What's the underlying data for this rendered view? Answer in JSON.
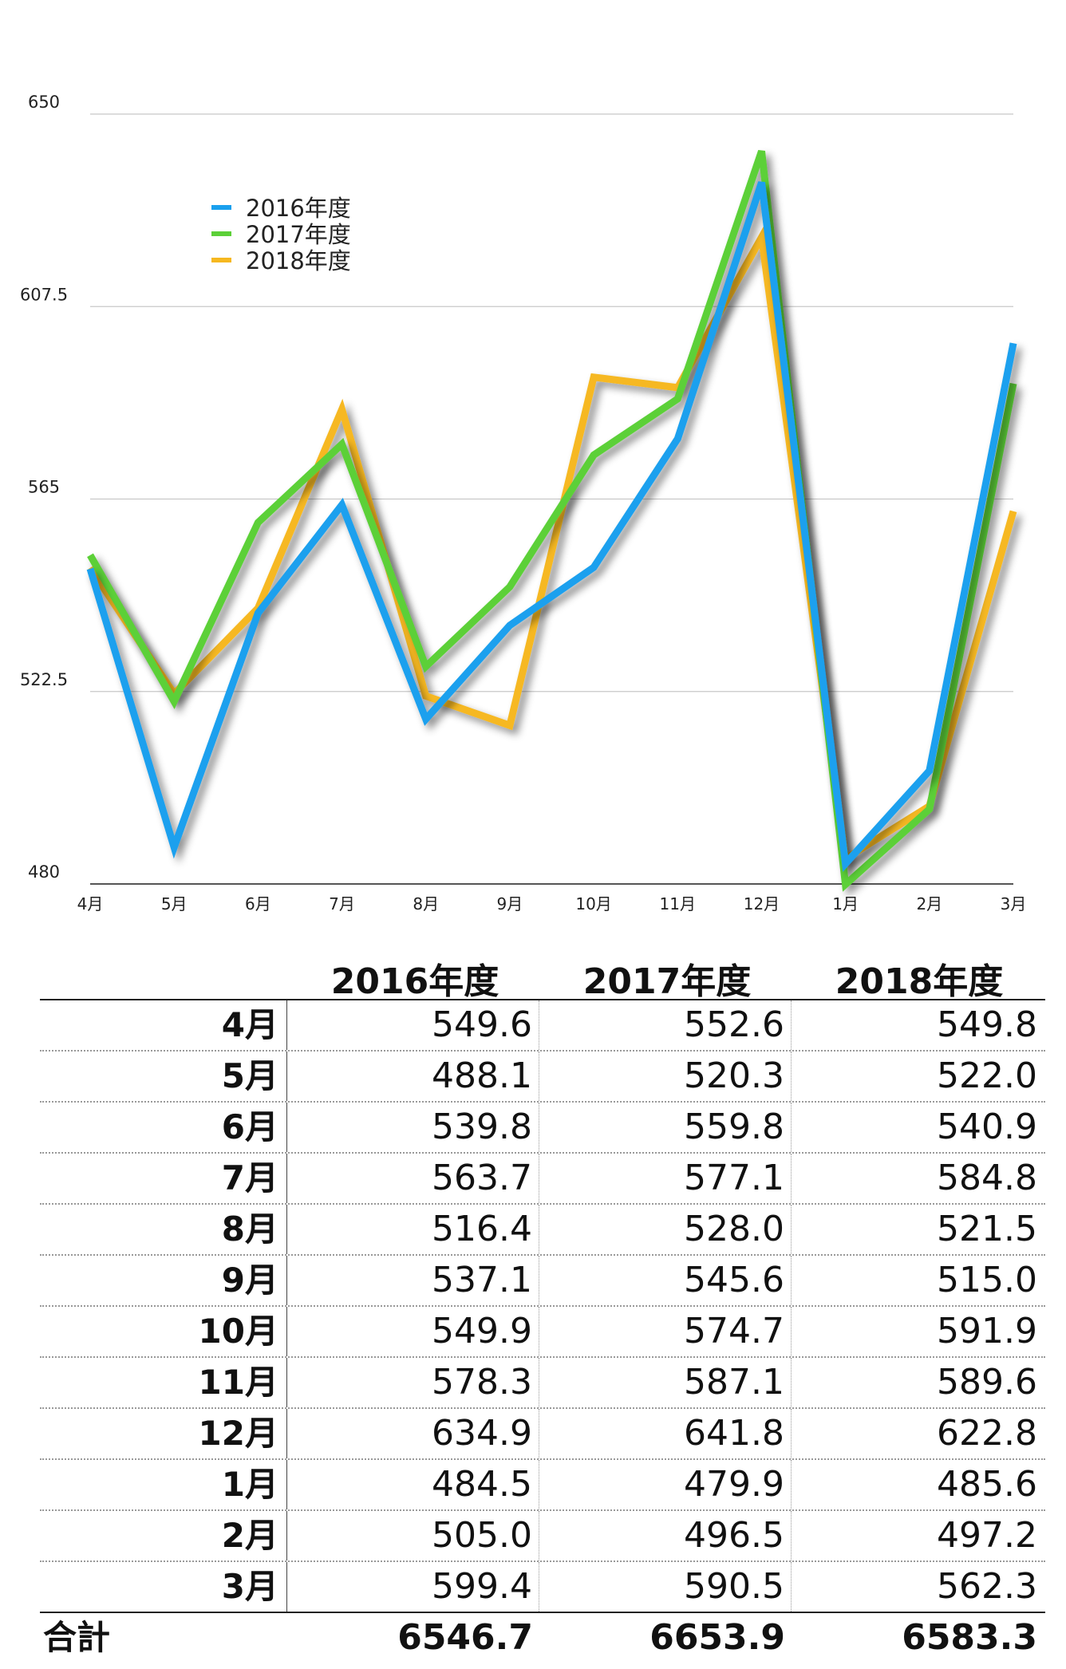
{
  "chart_data": {
    "type": "line",
    "categories": [
      "4月",
      "5月",
      "6月",
      "7月",
      "8月",
      "9月",
      "10月",
      "11月",
      "12月",
      "1月",
      "2月",
      "3月"
    ],
    "ylim": [
      480,
      650
    ],
    "yticks": [
      "650",
      "607.5",
      "565",
      "522.5",
      "480"
    ],
    "grid": true,
    "legend_position": "top-left",
    "series": [
      {
        "name": "2016年度",
        "color": "#1aa0ee",
        "values": [
          549.6,
          488.1,
          539.8,
          563.7,
          516.4,
          537.1,
          549.9,
          578.3,
          634.9,
          484.5,
          505.0,
          599.4
        ]
      },
      {
        "name": "2017年度",
        "color": "#5cd038",
        "values": [
          552.6,
          520.3,
          559.8,
          577.1,
          528.0,
          545.6,
          574.7,
          587.1,
          641.8,
          479.9,
          496.5,
          590.5
        ]
      },
      {
        "name": "2018年度",
        "color": "#f6b820",
        "values": [
          549.8,
          522.0,
          540.9,
          584.8,
          521.5,
          515.0,
          591.9,
          589.6,
          622.8,
          485.6,
          497.2,
          562.3
        ]
      }
    ]
  },
  "table": {
    "headers": [
      "2016年度",
      "2017年度",
      "2018年度"
    ],
    "rows": [
      {
        "month": "4月",
        "values": [
          "549.6",
          "552.6",
          "549.8"
        ]
      },
      {
        "month": "5月",
        "values": [
          "488.1",
          "520.3",
          "522.0"
        ]
      },
      {
        "month": "6月",
        "values": [
          "539.8",
          "559.8",
          "540.9"
        ]
      },
      {
        "month": "7月",
        "values": [
          "563.7",
          "577.1",
          "584.8"
        ]
      },
      {
        "month": "8月",
        "values": [
          "516.4",
          "528.0",
          "521.5"
        ]
      },
      {
        "month": "9月",
        "values": [
          "537.1",
          "545.6",
          "515.0"
        ]
      },
      {
        "month": "10月",
        "values": [
          "549.9",
          "574.7",
          "591.9"
        ]
      },
      {
        "month": "11月",
        "values": [
          "578.3",
          "587.1",
          "589.6"
        ]
      },
      {
        "month": "12月",
        "values": [
          "634.9",
          "641.8",
          "622.8"
        ]
      },
      {
        "month": "1月",
        "values": [
          "484.5",
          "479.9",
          "485.6"
        ]
      },
      {
        "month": "2月",
        "values": [
          "505.0",
          "496.5",
          "497.2"
        ]
      },
      {
        "month": "3月",
        "values": [
          "599.4",
          "590.5",
          "562.3"
        ]
      }
    ],
    "total": {
      "label": "合計",
      "values": [
        "6546.7",
        "6653.9",
        "6583.3"
      ]
    }
  }
}
